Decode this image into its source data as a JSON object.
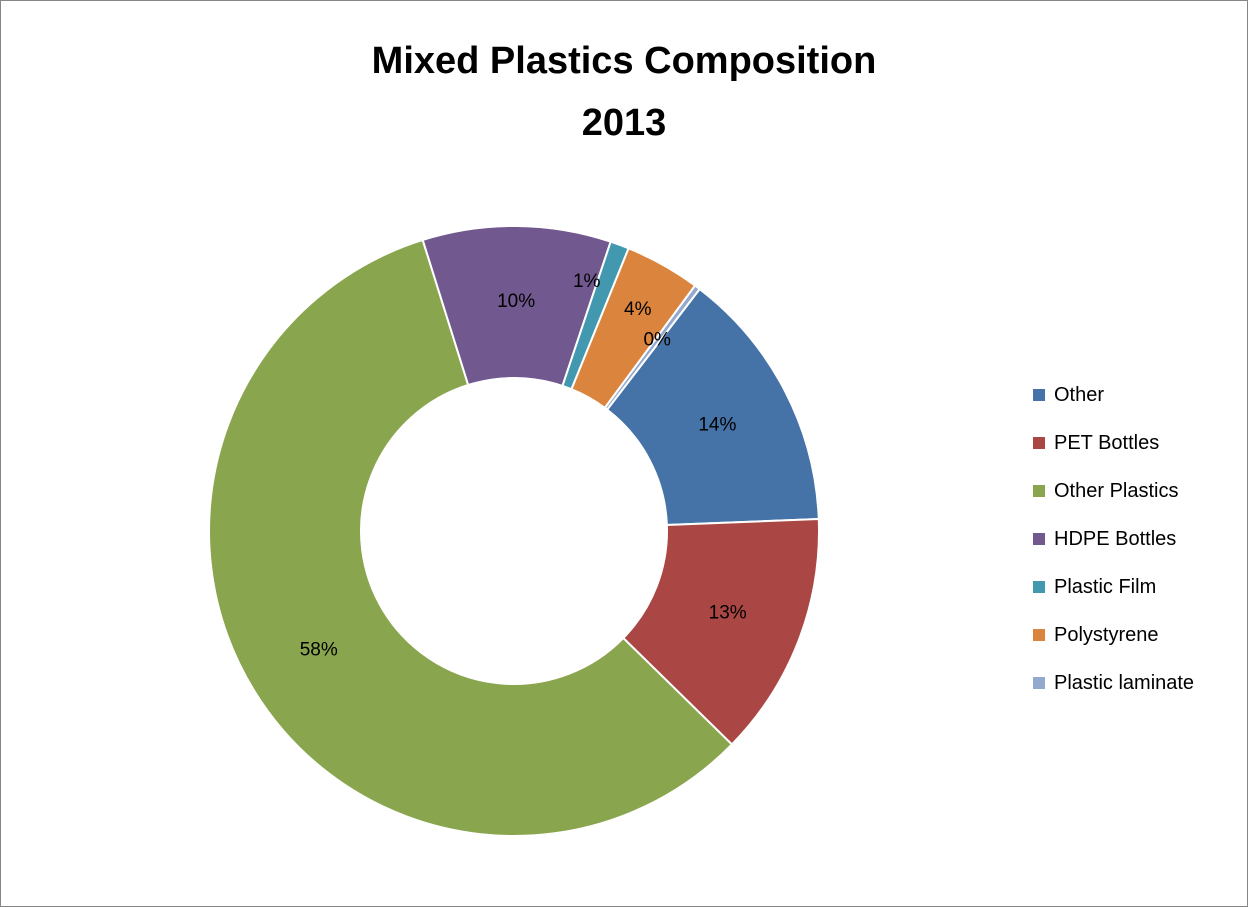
{
  "chart_data": {
    "type": "pie",
    "variant": "doughnut",
    "title": "Mixed Plastics Composition",
    "subtitle": "2013",
    "legend_position": "right",
    "slices": [
      {
        "label": "Other",
        "value": 14,
        "data_label": "14%",
        "color": "#4572A7"
      },
      {
        "label": "PET Bottles",
        "value": 13,
        "data_label": "13%",
        "color": "#AA4643"
      },
      {
        "label": "Other Plastics",
        "value": 58,
        "data_label": "58%",
        "color": "#89A54E"
      },
      {
        "label": "HDPE Bottles",
        "value": 10,
        "data_label": "10%",
        "color": "#71588F"
      },
      {
        "label": "Plastic Film",
        "value": 1,
        "data_label": "1%",
        "color": "#4198AF"
      },
      {
        "label": "Polystyrene",
        "value": 4,
        "data_label": "4%",
        "color": "#DB843D"
      },
      {
        "label": "Plastic laminate",
        "value": 0.3,
        "data_label": "0%",
        "color": "#93A9CF"
      }
    ]
  }
}
